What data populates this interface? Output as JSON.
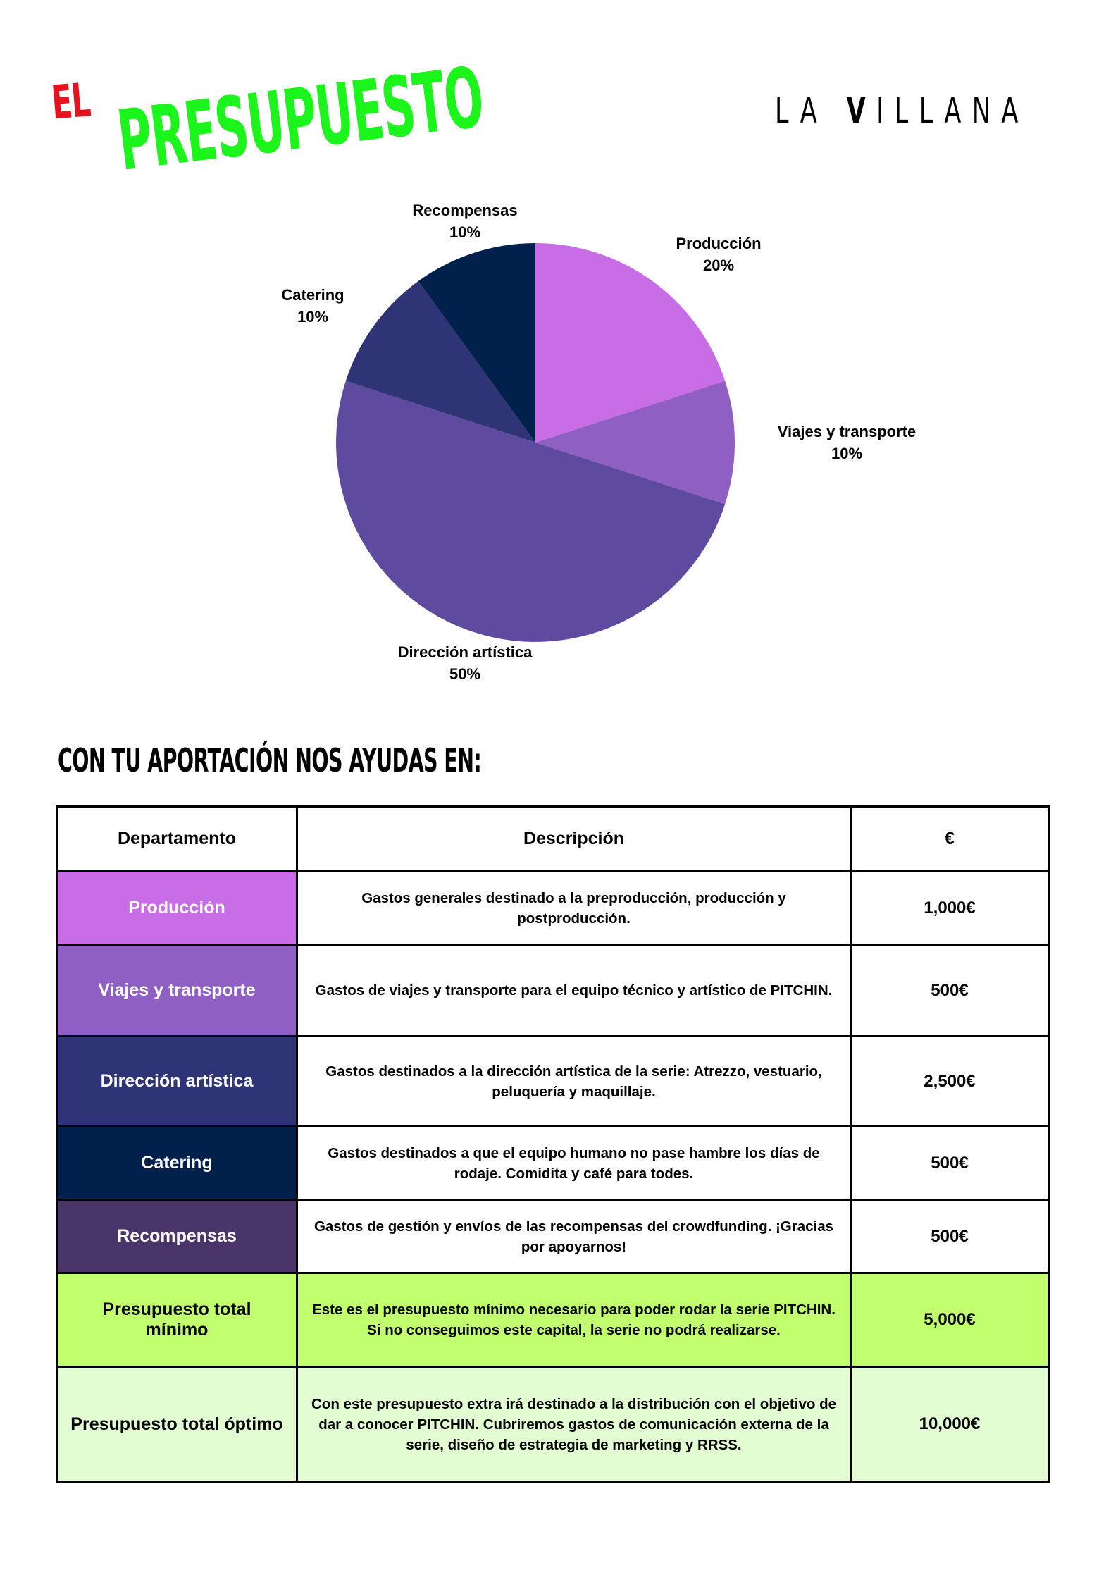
{
  "header": {
    "title_small": "EL",
    "title_big": "PRESUPUESTO",
    "logo_text": "LA VILLANA"
  },
  "chart_data": {
    "type": "pie",
    "categories": [
      "Producción",
      "Viajes y transporte",
      "Dirección artística",
      "Catering",
      "Recompensas"
    ],
    "values": [
      20,
      10,
      50,
      10,
      10
    ],
    "labels": [
      "20%",
      "10%",
      "50%",
      "10%",
      "10%"
    ],
    "colors": [
      "#c86de5",
      "#8f5fc4",
      "#5e4a9e",
      "#2e3475",
      "#02204c"
    ],
    "start": "top, clockwise"
  },
  "section_heading": "CON TU APORTACIÓN NOS AYUDAS EN:",
  "table": {
    "headers": [
      "Departamento",
      "Descripción",
      "€"
    ],
    "rows": [
      {
        "dept": "Producción",
        "desc": "Gastos generales destinado a la preproducción, producción y postproducción.",
        "amount": "1,000€",
        "color": "#c86de5",
        "text_color": "#ffffff",
        "bg": "#ffffff"
      },
      {
        "dept": "Viajes y transporte",
        "desc": "Gastos de viajes y transporte para el equipo técnico y artístico de PITCHIN.",
        "amount": "500€",
        "color": "#8f5fc4",
        "text_color": "#ffffff",
        "bg": "#ffffff"
      },
      {
        "dept": "Dirección artística",
        "desc": "Gastos destinados a la dirección artística de la serie: Atrezzo, vestuario, peluquería y maquillaje.",
        "amount": "2,500€",
        "color": "#2e3475",
        "text_color": "#ffffff",
        "bg": "#ffffff"
      },
      {
        "dept": "Catering",
        "desc": "Gastos destinados a que el equipo humano no pase hambre los días de rodaje. Comidita y café para todes.",
        "amount": "500€",
        "color": "#02204c",
        "text_color": "#ffffff",
        "bg": "#ffffff"
      },
      {
        "dept": "Recompensas",
        "desc": "Gastos de gestión y envíos de las recompensas del crowdfunding. ¡Gracias por apoyarnos!",
        "amount": "500€",
        "color": "#4a3568",
        "text_color": "#ffffff",
        "bg": "#ffffff"
      },
      {
        "dept": "Presupuesto total mínimo",
        "desc": "Este es el presupuesto mínimo necesario para poder rodar la serie PITCHIN. Si no conseguimos este capital, la serie no podrá realizarse.",
        "amount": "5,000€",
        "color": "#c1ff6f",
        "text_color": "#000000",
        "bg": "#c1ff6f"
      },
      {
        "dept": "Presupuesto total óptimo",
        "desc": "Con este presupuesto extra irá destinado a la distribución con el objetivo de dar a conocer PITCHIN. Cubriremos gastos de comunicación externa de la serie, diseño de estrategia de marketing y RRSS.",
        "amount": "10,000€",
        "color": "#e3fdd3",
        "text_color": "#000000",
        "bg": "#e3fdd3"
      }
    ]
  }
}
